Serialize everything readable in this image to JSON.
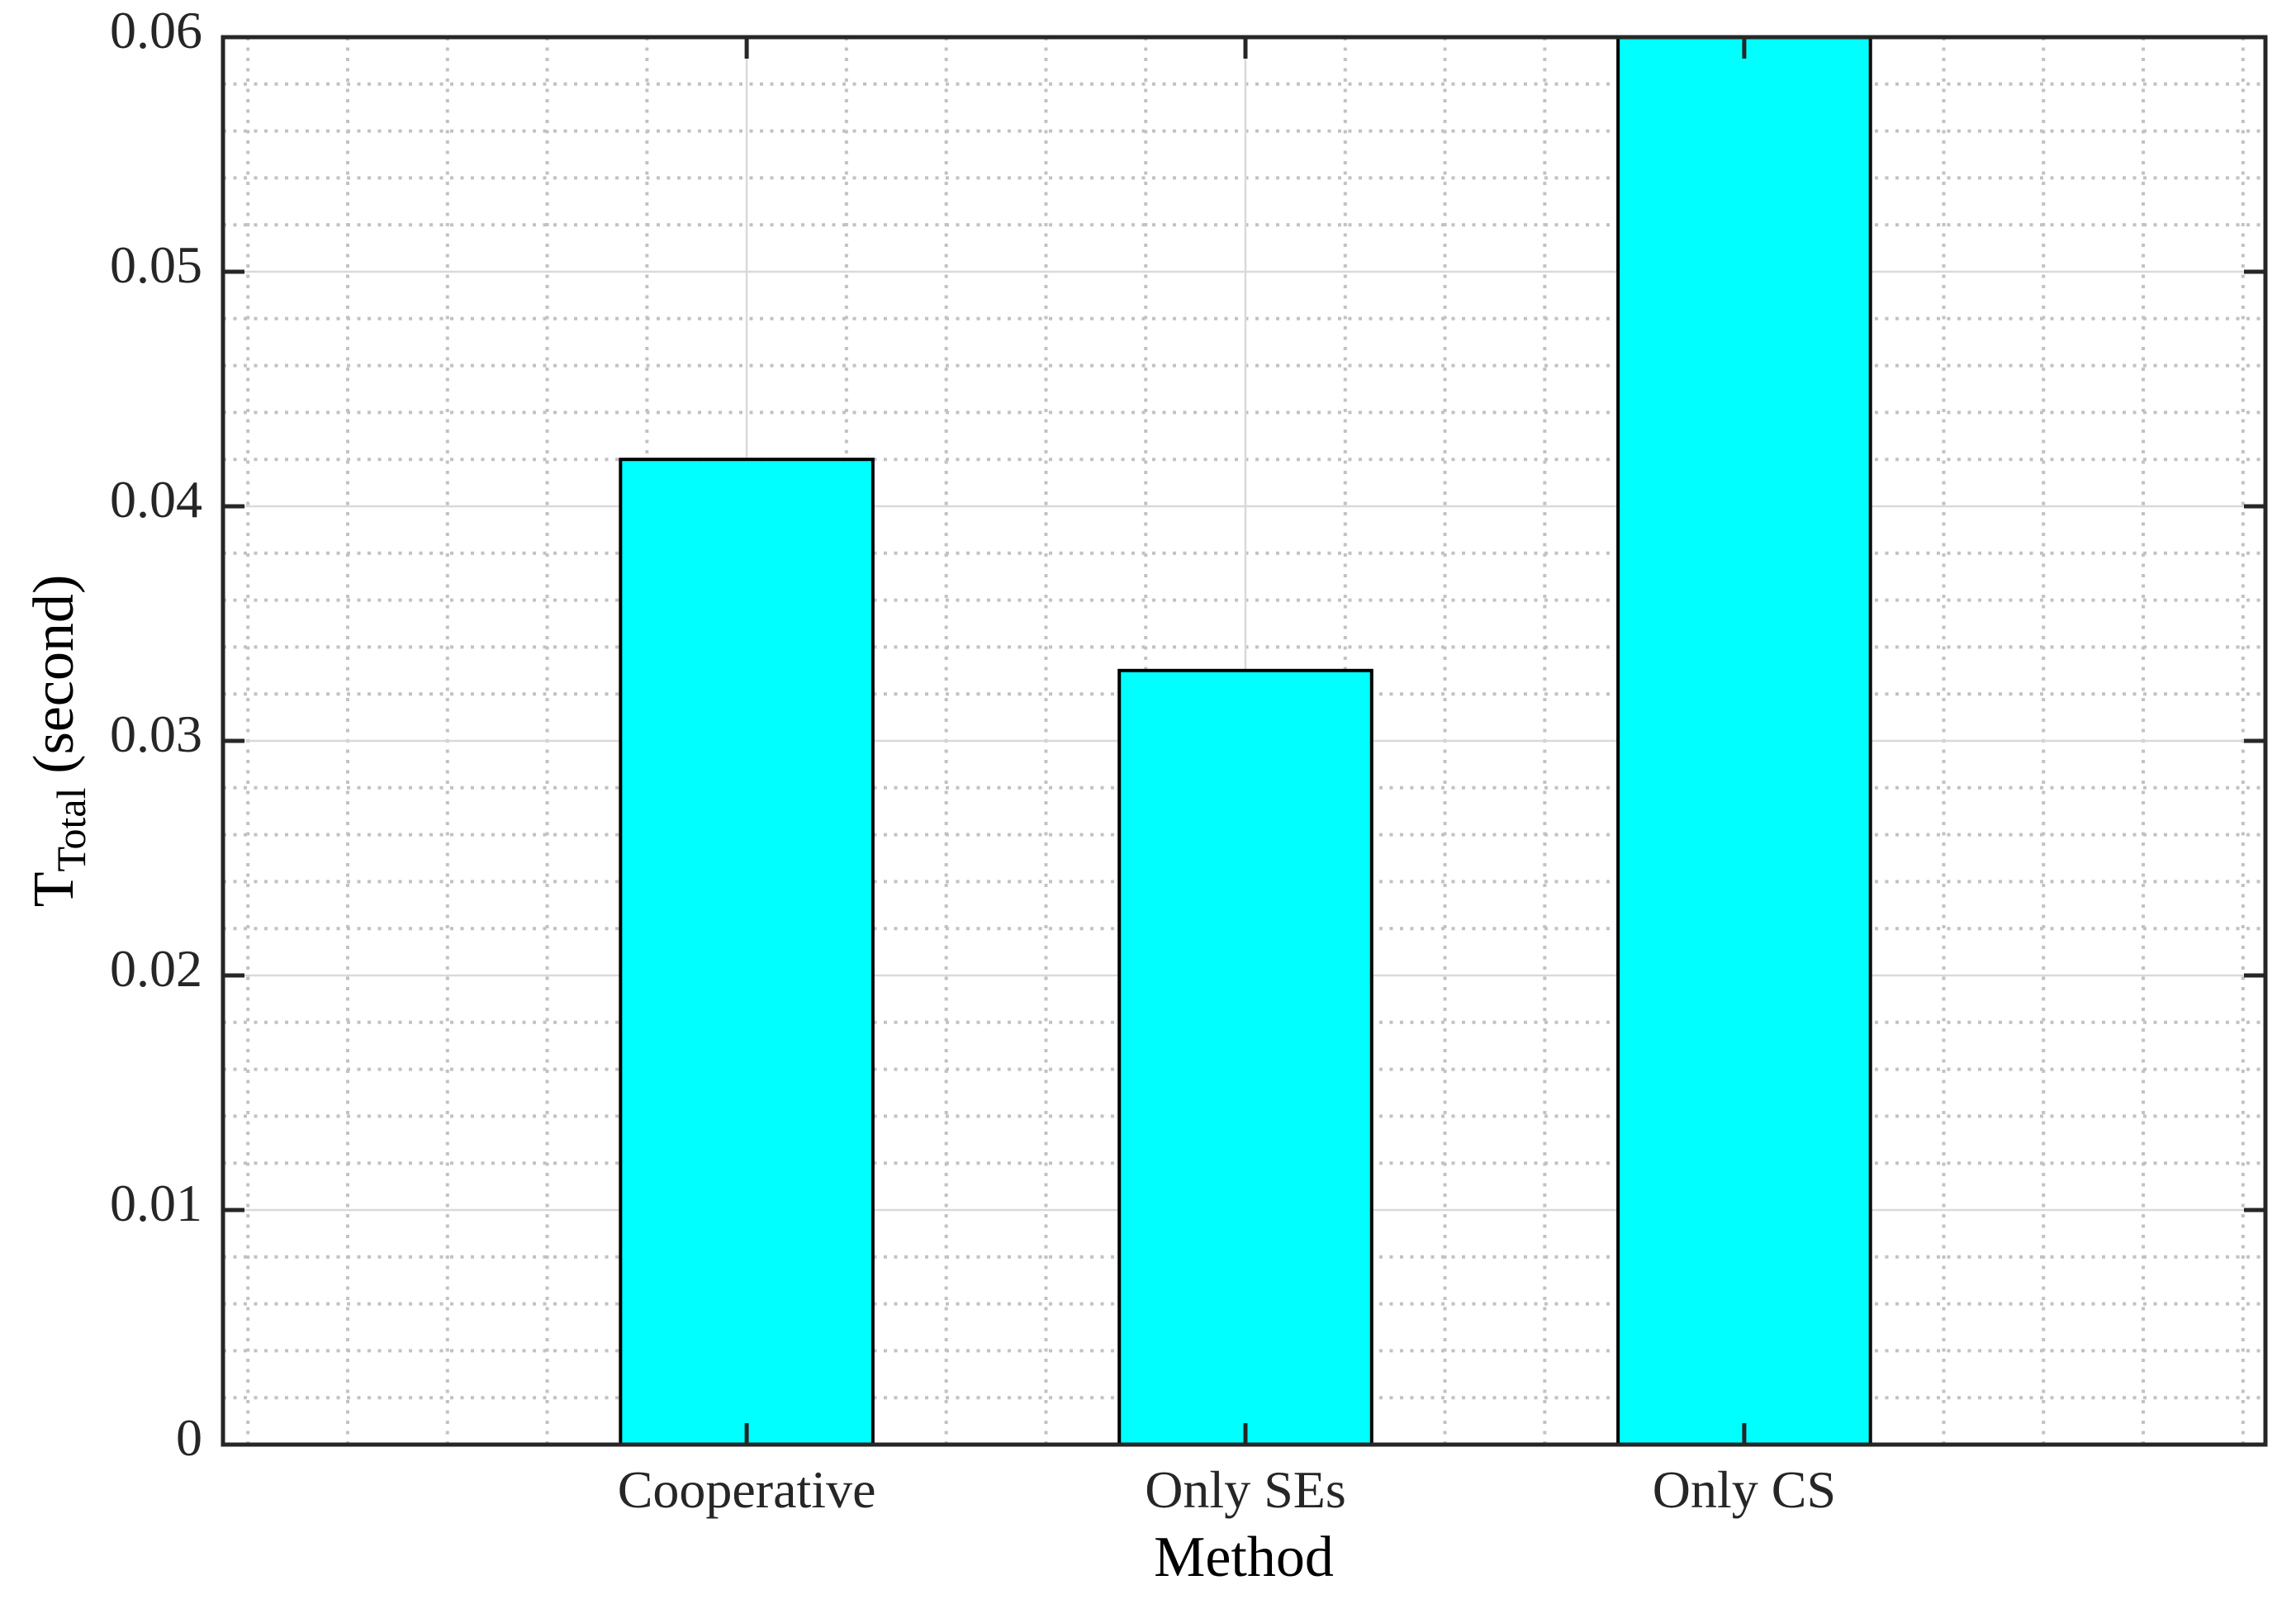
{
  "chart_data": {
    "type": "bar",
    "title": "",
    "categories": [
      "Cooperative",
      "Only SEs",
      "Only CS"
    ],
    "values": [
      0.042,
      0.033,
      0.06
    ],
    "clipped_at_top": [
      false,
      false,
      true
    ],
    "xlabel": "Method",
    "ylabel": "T_Total (second)",
    "ylabel_main": "T",
    "ylabel_sub": "Total",
    "ylabel_unit": "(second)",
    "x_centers": [
      1,
      2,
      3
    ],
    "xlim": [
      -0.05,
      4.045
    ],
    "ylim": [
      0,
      0.06
    ],
    "yticks": [
      0,
      0.01,
      0.02,
      0.03,
      0.04,
      0.05,
      0.06
    ],
    "ytick_labels": [
      "0",
      "0.01",
      "0.02",
      "0.03",
      "0.04",
      "0.05",
      "0.06"
    ],
    "y_minor_step": 0.002,
    "x_minor_step": 0.2,
    "bar_width_units": 0.506,
    "grid": "on",
    "minor_grid": "on",
    "legend": "none",
    "tick_direction": "in",
    "box": "on",
    "colors": {
      "background": "#ffffff",
      "bar_fill": "#00ffff",
      "bar_edge": "#000000",
      "axis": "#262626",
      "major_grid": "#d9d9d9",
      "minor_grid": "#c2c2c2",
      "tick_label": "#262626",
      "axis_label": "#000000"
    }
  }
}
